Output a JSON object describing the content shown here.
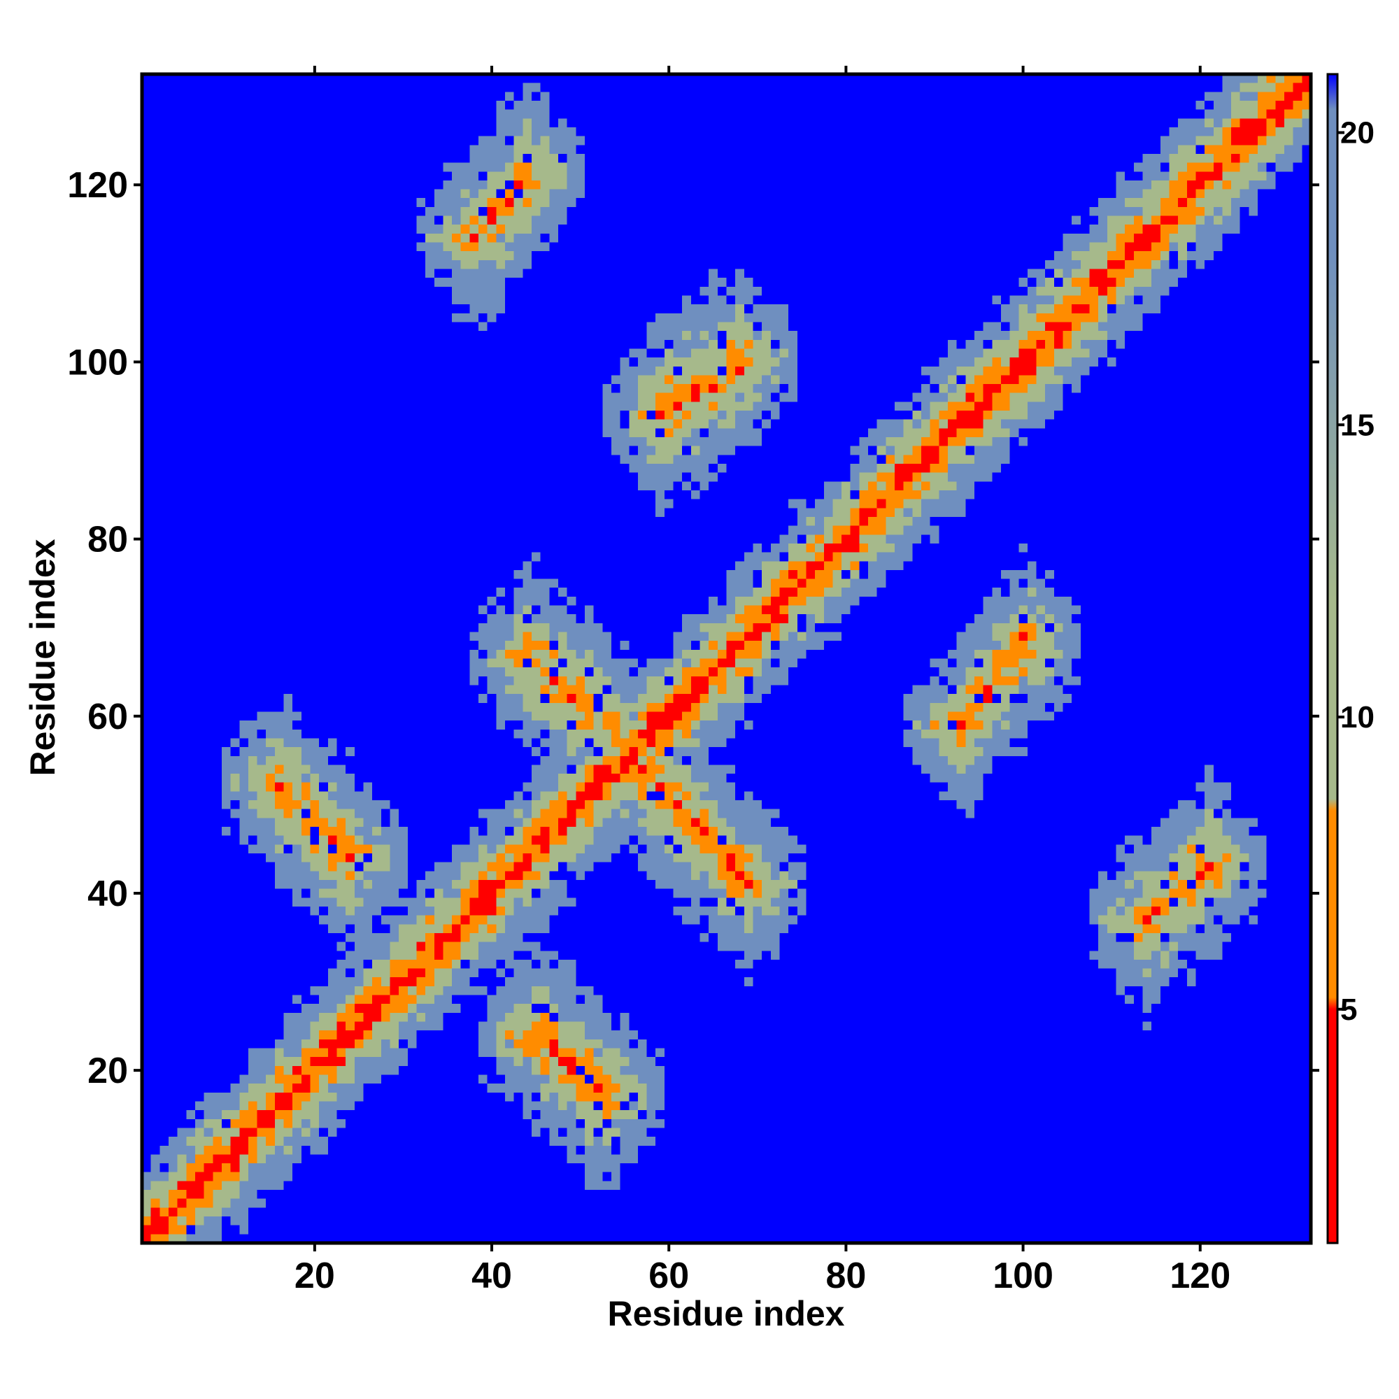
{
  "chart_data": {
    "type": "heatmap",
    "title": "",
    "xlabel": "Residue index",
    "ylabel": "Residue index",
    "n_residues": 132,
    "xlim": [
      1,
      132
    ],
    "ylim": [
      1,
      132
    ],
    "x_ticks": [
      20,
      40,
      60,
      80,
      100,
      120
    ],
    "y_ticks": [
      20,
      40,
      60,
      80,
      100,
      120
    ],
    "x_tick_labels": [
      "20",
      "40",
      "60",
      "80",
      "100",
      "120"
    ],
    "y_tick_labels": [
      "20",
      "40",
      "60",
      "80",
      "100",
      "120"
    ],
    "colorbar": {
      "ticks": [
        5,
        10,
        15,
        20
      ],
      "tick_labels": [
        "5",
        "10",
        "15",
        "20"
      ],
      "range": [
        1,
        21
      ],
      "colors": {
        "low": "#ff0000",
        "mid_low": "#ff8c00",
        "mid": "#a6b98b",
        "mid_high": "#6f8fbf",
        "high": "#0000ff"
      }
    },
    "cutoff_color": "#0000ff",
    "features": {
      "main_diagonal": "residues 1-132",
      "anti_parallel_contacts": [
        {
          "i": [
            16,
            24
          ],
          "j": [
            52,
            44
          ]
        },
        {
          "i": [
            45,
            53
          ],
          "j": [
            24,
            17
          ]
        },
        {
          "i": [
            44,
            55
          ],
          "j": [
            67,
            57
          ]
        },
        {
          "i": [
            57,
            69
          ],
          "j": [
            54,
            41
          ]
        },
        {
          "i": [
            59,
            68
          ],
          "j": [
            94,
            100
          ]
        },
        {
          "i": [
            93,
            100
          ],
          "j": [
            59,
            68
          ]
        },
        {
          "i": [
            114,
            121
          ],
          "j": [
            37,
            43
          ]
        },
        {
          "i": [
            38,
            44
          ],
          "j": [
            114,
            121
          ]
        }
      ]
    }
  }
}
